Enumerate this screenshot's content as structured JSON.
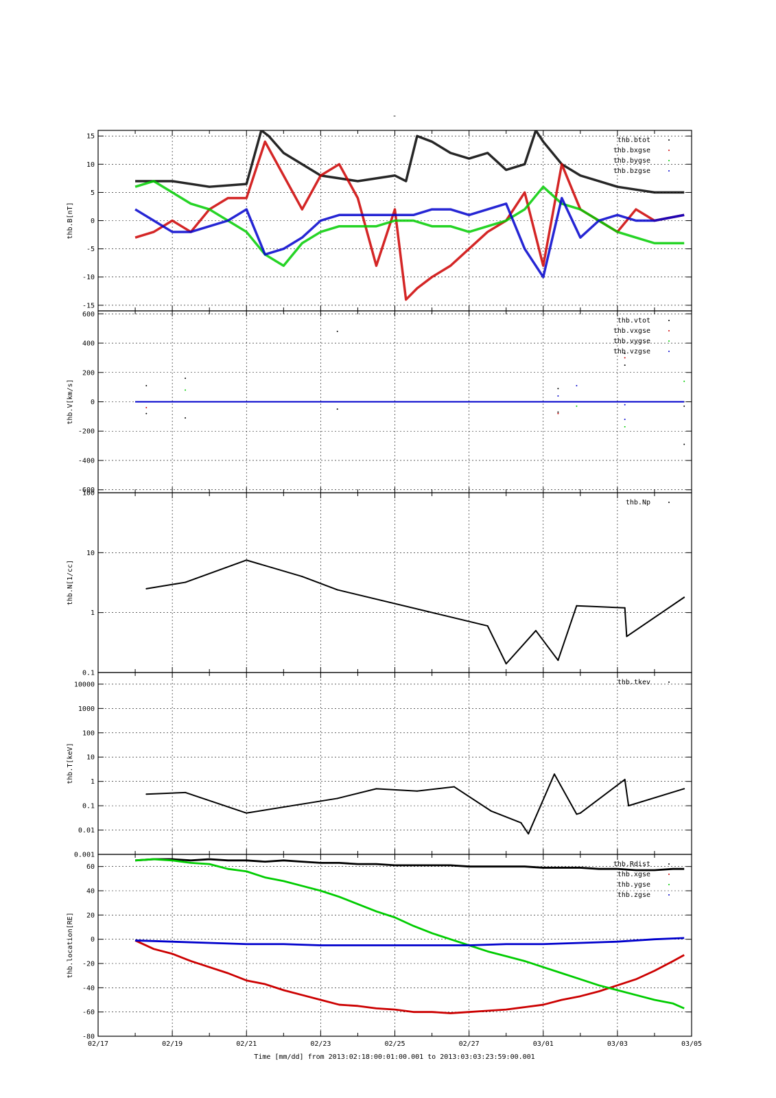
{
  "page": {
    "title_mark": "-",
    "xlabel": "Time [mm/dd]  from 2013:02:18:00:01:00.001  to  2013:03:03:23:59:00.001"
  },
  "colors": {
    "black": "#000000",
    "red": "#cc0000",
    "green": "#00cc00",
    "blue": "#0000cc"
  },
  "chart_data": [
    {
      "type": "scatter",
      "ylabel": "thb.B[nT]",
      "ylim": [
        -16,
        16
      ],
      "yticks": [
        -15,
        -10,
        -5,
        0,
        5,
        10,
        15
      ],
      "ytick_labels": [
        "-15",
        "-10",
        "-5",
        "0",
        "5",
        "10",
        "15"
      ],
      "legend_position": "top-right",
      "series": [
        {
          "name": "thb.btot",
          "color": "black",
          "x": [
            1.0,
            2.0,
            3.0,
            4.0,
            4.4,
            4.6,
            5.0,
            6.0,
            7.0,
            8.0,
            8.3,
            8.6,
            9.0,
            9.5,
            10.0,
            10.5,
            11.0,
            11.5,
            11.8,
            12.0,
            12.5,
            13.0,
            13.5,
            14.0,
            14.5,
            15.0,
            15.5,
            15.8
          ],
          "y": [
            7,
            7,
            6,
            6.5,
            16,
            15,
            12,
            8,
            7,
            8,
            7,
            15,
            14,
            12,
            11,
            12,
            9,
            10,
            16,
            14,
            10,
            8,
            7,
            6,
            5.5,
            5,
            5,
            5
          ]
        },
        {
          "name": "thb.bxgse",
          "color": "red",
          "x": [
            1.0,
            1.5,
            2.0,
            2.5,
            3.0,
            3.5,
            4.0,
            4.5,
            5.0,
            5.5,
            6.0,
            6.5,
            7.0,
            7.5,
            8.0,
            8.3,
            8.6,
            9.0,
            9.5,
            10.0,
            10.5,
            11.0,
            11.5,
            12.0,
            12.5,
            13.0,
            13.5,
            14.0,
            14.5,
            15.0,
            15.8
          ],
          "y": [
            -3,
            -2,
            0,
            -2,
            2,
            4,
            4,
            14,
            8,
            2,
            8,
            10,
            4,
            -8,
            2,
            -14,
            -12,
            -10,
            -8,
            -5,
            -2,
            0,
            5,
            -8,
            10,
            2,
            0,
            -2,
            2,
            0,
            1
          ]
        },
        {
          "name": "thb.bygse",
          "color": "green",
          "x": [
            1.0,
            1.5,
            2.0,
            2.5,
            3.0,
            3.5,
            4.0,
            4.5,
            5.0,
            5.5,
            6.0,
            6.5,
            7.0,
            7.5,
            8.0,
            8.5,
            9.0,
            9.5,
            10.0,
            10.5,
            11.0,
            11.5,
            12.0,
            12.5,
            13.0,
            13.5,
            14.0,
            14.5,
            15.0,
            15.8
          ],
          "y": [
            6,
            7,
            5,
            3,
            2,
            0,
            -2,
            -6,
            -8,
            -4,
            -2,
            -1,
            -1,
            -1,
            0,
            0,
            -1,
            -1,
            -2,
            -1,
            0,
            2,
            6,
            3,
            2,
            0,
            -2,
            -3,
            -4,
            -4
          ]
        },
        {
          "name": "thb.bzgse",
          "color": "blue",
          "x": [
            1.0,
            1.5,
            2.0,
            2.5,
            3.0,
            3.5,
            4.0,
            4.5,
            5.0,
            5.5,
            6.0,
            6.5,
            7.0,
            7.5,
            8.0,
            8.5,
            9.0,
            9.5,
            10.0,
            10.5,
            11.0,
            11.5,
            12.0,
            12.5,
            13.0,
            13.5,
            14.0,
            14.5,
            15.0,
            15.8
          ],
          "y": [
            2,
            0,
            -2,
            -2,
            -1,
            0,
            2,
            -6,
            -5,
            -3,
            0,
            1,
            1,
            1,
            1,
            1,
            2,
            2,
            1,
            2,
            3,
            -5,
            -10,
            4,
            -3,
            0,
            1,
            0,
            0,
            1
          ]
        }
      ]
    },
    {
      "type": "scatter",
      "ylabel": "thb.V[km/s]",
      "ylim": [
        -620,
        620
      ],
      "yticks": [
        -600,
        -400,
        -200,
        0,
        200,
        400,
        600
      ],
      "ytick_labels": [
        "-600",
        "-400",
        "-200",
        "0",
        "200",
        "400",
        "600"
      ],
      "legend_position": "top-right",
      "series": [
        {
          "name": "thb.vtot",
          "color": "black",
          "x": [
            1.0,
            5.5,
            9.8,
            14.5,
            15.8
          ],
          "y": [
            0,
            0,
            0,
            0,
            0
          ],
          "points_x": [
            1.3,
            1.3,
            2.35,
            2.35,
            6.45,
            6.45,
            12.4,
            12.4,
            14.2,
            14.2,
            15.8,
            15.8
          ],
          "points_y": [
            110,
            -80,
            160,
            -110,
            480,
            -50,
            90,
            -70,
            330,
            250,
            -30,
            -290
          ]
        },
        {
          "name": "thb.vxgse",
          "color": "red",
          "x": [
            1.0,
            15.8
          ],
          "y": [
            0,
            0
          ],
          "points_x": [
            1.3,
            12.4,
            14.2
          ],
          "points_y": [
            -40,
            -80,
            300
          ]
        },
        {
          "name": "thb.vygse",
          "color": "green",
          "x": [
            1.0,
            15.8
          ],
          "y": [
            0,
            0
          ],
          "points_x": [
            2.35,
            12.9,
            14.2,
            15.8
          ],
          "points_y": [
            80,
            -30,
            -170,
            140
          ]
        },
        {
          "name": "thb.vzgse",
          "color": "blue",
          "x": [
            1.0,
            5.0,
            10.0,
            15.8
          ],
          "y": [
            0,
            0,
            0,
            0
          ],
          "points_x": [
            12.4,
            12.9,
            14.2,
            14.2
          ],
          "points_y": [
            40,
            110,
            -20,
            -120
          ]
        }
      ]
    },
    {
      "type": "scatter",
      "scale": "log",
      "ylabel": "thb.N[1/cc]",
      "ylim": [
        0.1,
        100
      ],
      "yticks": [
        0.1,
        1,
        10,
        100
      ],
      "ytick_labels": [
        "0.1",
        "1",
        "10",
        "100"
      ],
      "legend_position": "top-right",
      "series": [
        {
          "name": "thb.Np",
          "color": "black",
          "x": [
            1.3,
            2.35,
            4.0,
            5.5,
            6.45,
            10.5,
            11.0,
            11.8,
            12.4,
            12.9,
            14.2,
            14.25,
            15.8
          ],
          "y": [
            2.5,
            3.2,
            7.5,
            4.0,
            2.4,
            0.6,
            0.14,
            0.5,
            0.16,
            1.3,
            1.2,
            0.4,
            1.8
          ]
        }
      ]
    },
    {
      "type": "scatter",
      "scale": "log",
      "ylabel": "thb.T[keV]",
      "ylim": [
        0.001,
        30000
      ],
      "yticks": [
        0.001,
        0.01,
        0.1,
        1,
        10,
        100,
        1000,
        10000
      ],
      "ytick_labels": [
        "0.001",
        "0.01",
        "0.1",
        "1",
        "10",
        "100",
        "1000",
        "10000"
      ],
      "legend_position": "top-right",
      "series": [
        {
          "name": "thb.tkev",
          "color": "black",
          "x": [
            1.3,
            2.35,
            4.0,
            6.45,
            7.5,
            8.6,
            9.6,
            10.6,
            11.4,
            11.6,
            12.3,
            12.9,
            13.0,
            14.2,
            14.3,
            15.8
          ],
          "y": [
            0.3,
            0.35,
            0.05,
            0.2,
            0.5,
            0.4,
            0.6,
            0.06,
            0.02,
            0.007,
            2,
            0.045,
            0.05,
            1.2,
            0.1,
            0.5
          ]
        }
      ]
    },
    {
      "type": "line",
      "ylabel": "thb.location[RE]",
      "ylim": [
        -80,
        70
      ],
      "yticks": [
        -80,
        -60,
        -40,
        -20,
        0,
        20,
        40,
        60
      ],
      "ytick_labels": [
        "-80",
        "-60",
        "-40",
        "-20",
        "0",
        "20",
        "40",
        "60"
      ],
      "legend_position": "top-right",
      "series": [
        {
          "name": "thb.Rdist",
          "color": "black",
          "x": [
            1.0,
            1.5,
            2.0,
            2.5,
            3.0,
            3.5,
            4.0,
            4.5,
            5.0,
            5.5,
            6.0,
            6.5,
            7.0,
            7.5,
            8.0,
            8.5,
            9.0,
            9.5,
            10.0,
            10.5,
            11.0,
            11.5,
            12.0,
            12.5,
            13.0,
            13.5,
            14.0,
            14.5,
            15.0,
            15.5,
            15.8
          ],
          "y": [
            65,
            66,
            66,
            65,
            66,
            65,
            65,
            64,
            65,
            64,
            63,
            63,
            62,
            62,
            61,
            61,
            61,
            61,
            60,
            60,
            60,
            60,
            59,
            59,
            59,
            58,
            58,
            57,
            57,
            58,
            58
          ]
        },
        {
          "name": "thb.xgse",
          "color": "red",
          "x": [
            1.0,
            1.5,
            2.0,
            2.5,
            3.0,
            3.5,
            4.0,
            4.5,
            5.0,
            5.5,
            6.0,
            6.5,
            7.0,
            7.5,
            8.0,
            8.5,
            9.0,
            9.5,
            10.0,
            10.5,
            11.0,
            11.5,
            12.0,
            12.5,
            13.0,
            13.5,
            14.0,
            14.5,
            15.0,
            15.5,
            15.8
          ],
          "y": [
            -1,
            -8,
            -12,
            -18,
            -23,
            -28,
            -34,
            -37,
            -42,
            -46,
            -50,
            -54,
            -55,
            -57,
            -58,
            -60,
            -60,
            -61,
            -60,
            -59,
            -58,
            -56,
            -54,
            -50,
            -47,
            -43,
            -38,
            -33,
            -26,
            -18,
            -13
          ]
        },
        {
          "name": "thb.ygse",
          "color": "green",
          "x": [
            1.0,
            1.5,
            2.0,
            2.5,
            3.0,
            3.5,
            4.0,
            4.5,
            5.0,
            5.5,
            6.0,
            6.5,
            7.0,
            7.5,
            8.0,
            8.5,
            9.0,
            9.5,
            10.0,
            10.5,
            11.0,
            11.5,
            12.0,
            12.5,
            13.0,
            13.5,
            14.0,
            14.5,
            15.0,
            15.5,
            15.8
          ],
          "y": [
            65,
            66,
            65,
            63,
            62,
            58,
            56,
            51,
            48,
            44,
            40,
            35,
            29,
            23,
            18,
            11,
            5,
            0,
            -5,
            -10,
            -14,
            -18,
            -23,
            -28,
            -33,
            -38,
            -42,
            -46,
            -50,
            -53,
            -57
          ]
        },
        {
          "name": "thb.zgse",
          "color": "blue",
          "x": [
            1.0,
            2.0,
            3.0,
            4.0,
            5.0,
            6.0,
            7.0,
            8.0,
            9.0,
            10.0,
            11.0,
            12.0,
            13.0,
            14.0,
            15.0,
            15.8
          ],
          "y": [
            -1,
            -2,
            -3,
            -4,
            -4,
            -5,
            -5,
            -5,
            -5,
            -5,
            -4,
            -4,
            -3,
            -2,
            0,
            1
          ]
        }
      ]
    }
  ],
  "x_axis": {
    "xlim": [
      "02/17",
      "03/05"
    ],
    "tick_labels": [
      "02/17",
      "02/19",
      "02/21",
      "02/23",
      "02/25",
      "02/27",
      "03/01",
      "03/03",
      "03/05"
    ]
  }
}
